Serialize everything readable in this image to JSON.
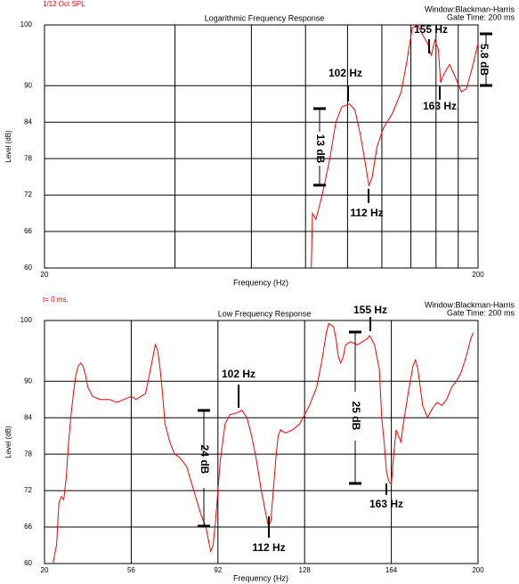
{
  "chart_data": [
    {
      "type": "line",
      "header": "1/12 Oct SPL",
      "title": "Logarithmic Frequency Response",
      "notes": [
        "Window:Blackman-Harris",
        "Gate Time: 200 ms"
      ],
      "xlabel": "Frequency (Hz)",
      "ylabel": "Level (dB)",
      "x_scale": "log",
      "xlim": [
        20,
        200
      ],
      "xticks": [
        20,
        200
      ],
      "xgrid": [
        40,
        60,
        80,
        100,
        120,
        140,
        160,
        180
      ],
      "ylim": [
        60,
        100
      ],
      "yticks": [
        60,
        66,
        72,
        78,
        84,
        90,
        100
      ],
      "color": "#ff0000",
      "x": [
        82.5,
        83,
        84.5,
        86,
        88,
        91,
        94,
        97,
        101,
        104,
        107,
        110,
        112,
        114,
        117,
        121,
        127,
        133,
        137,
        141,
        145,
        150,
        153,
        156,
        159,
        162,
        164,
        167,
        172,
        177,
        183,
        188,
        194,
        200
      ],
      "values": [
        60,
        69,
        68,
        70,
        73,
        78,
        84,
        86.5,
        87,
        86,
        82,
        77,
        73.5,
        75,
        80,
        83,
        85.5,
        89,
        94,
        99.5,
        100,
        98,
        97,
        95,
        97.5,
        96,
        90.5,
        92,
        93.5,
        91.5,
        89,
        89.5,
        93,
        97
      ],
      "annotations": [
        "102 Hz",
        "112 Hz",
        "155 Hz",
        "163 Hz",
        "13 dB",
        "5.8 dB"
      ]
    },
    {
      "type": "line",
      "header": "t= 0 ms.",
      "title": "Low Frequency Response",
      "notes": [
        "Window:Blackman-Harris",
        "Gate Time: 200 ms"
      ],
      "xlabel": "Frequency (Hz)",
      "ylabel": "Level (dB)",
      "x_scale": "linear",
      "xlim": [
        20,
        200
      ],
      "xticks": [
        20,
        56,
        92,
        128,
        164,
        200
      ],
      "ylim": [
        60,
        100
      ],
      "yticks": [
        60,
        66,
        72,
        78,
        84,
        90,
        100
      ],
      "color": "#ff0000",
      "x": [
        23.5,
        25,
        26,
        27,
        28,
        29,
        30,
        31,
        32,
        33,
        34,
        35,
        36,
        37,
        38,
        40,
        43,
        47,
        50,
        53,
        56,
        58,
        60,
        62,
        63,
        65,
        66,
        67,
        68,
        69,
        70,
        72,
        74,
        76,
        79,
        82,
        85,
        87,
        88,
        89,
        90,
        91,
        92,
        93,
        94,
        95,
        97,
        100,
        102,
        104,
        106,
        108,
        110,
        112,
        113,
        114,
        115,
        116,
        117,
        118,
        120,
        123,
        126,
        130,
        133,
        135,
        137,
        138,
        140,
        141,
        142,
        143,
        144,
        145,
        147,
        150,
        152,
        154,
        155,
        157,
        159,
        160,
        161,
        162,
        163,
        164,
        165,
        166,
        168,
        169,
        171,
        173,
        174,
        175,
        177,
        179,
        181,
        183,
        185,
        187,
        189,
        191,
        193,
        195,
        197,
        198
      ],
      "values": [
        60,
        63,
        70,
        71,
        70.5,
        74,
        80,
        84.5,
        88,
        91,
        92.5,
        93,
        92.5,
        91,
        89,
        87.5,
        87,
        87,
        86.5,
        87,
        87.5,
        87,
        87.5,
        88,
        90,
        94,
        96,
        95,
        92,
        88,
        83,
        80,
        78,
        77.5,
        76,
        72,
        68,
        66,
        64,
        62,
        63,
        67,
        72,
        77,
        80,
        83,
        84.5,
        84.8,
        85.2,
        84,
        81,
        77,
        72,
        68,
        66,
        67,
        72,
        77,
        81,
        82,
        81.5,
        82,
        83,
        86,
        89,
        93,
        98,
        99.5,
        99,
        97,
        94,
        93,
        94,
        96,
        96.5,
        96,
        96.5,
        97,
        97.5,
        96,
        92,
        84,
        80,
        75,
        73.5,
        73,
        78,
        82,
        80,
        83,
        88,
        92.5,
        93.5,
        92,
        86,
        84,
        85.5,
        86.5,
        86,
        87,
        89,
        90,
        91.5,
        94,
        97,
        98
      ],
      "annotations": [
        "102 Hz",
        "112 Hz",
        "155 Hz",
        "163 Hz",
        "24 dB",
        "25 dB"
      ]
    }
  ]
}
